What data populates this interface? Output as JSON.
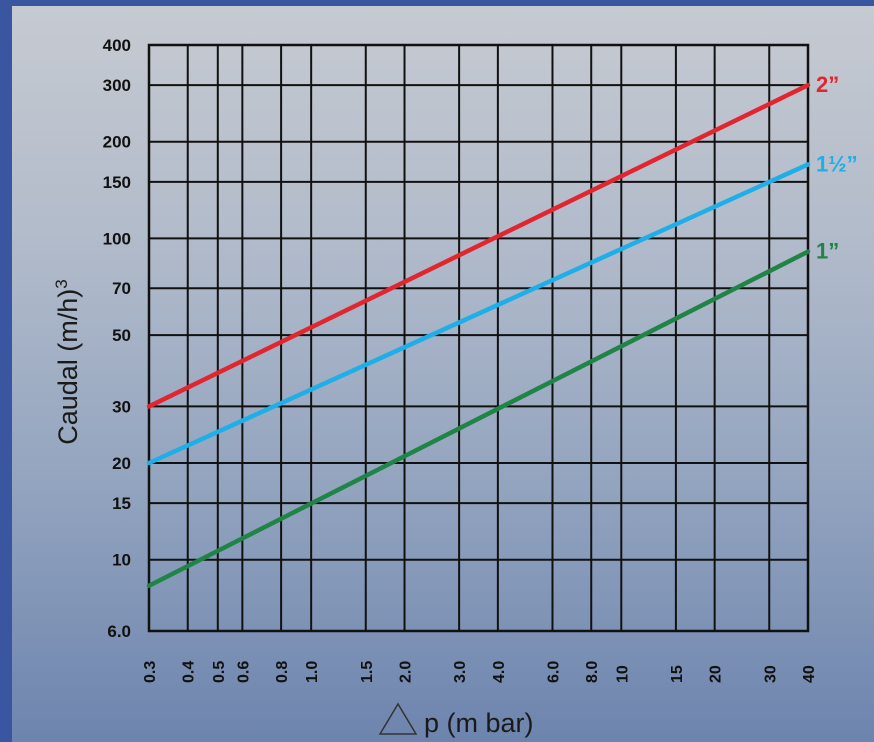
{
  "chart_data": {
    "type": "line",
    "xlabel": "p (m bar)",
    "ylabel": "Caudal (m/h)",
    "ylabel_superscript": "3",
    "x_scale": "log",
    "y_scale": "log",
    "xlim": [
      0.3,
      40
    ],
    "ylim": [
      6.0,
      400
    ],
    "grid": true,
    "x_ticks": [
      {
        "value": 0.3,
        "label": "0.3"
      },
      {
        "value": 0.4,
        "label": "0.4"
      },
      {
        "value": 0.5,
        "label": "0.5"
      },
      {
        "value": 0.6,
        "label": "0.6"
      },
      {
        "value": 0.8,
        "label": "0.8"
      },
      {
        "value": 1.0,
        "label": "1.0"
      },
      {
        "value": 1.5,
        "label": "1.5"
      },
      {
        "value": 2.0,
        "label": "2.0"
      },
      {
        "value": 3.0,
        "label": "3.0"
      },
      {
        "value": 4.0,
        "label": "4.0"
      },
      {
        "value": 6.0,
        "label": "6.0"
      },
      {
        "value": 8.0,
        "label": "8.0"
      },
      {
        "value": 10,
        "label": "10"
      },
      {
        "value": 15,
        "label": "15"
      },
      {
        "value": 20,
        "label": "20"
      },
      {
        "value": 30,
        "label": "30"
      },
      {
        "value": 40,
        "label": "40"
      }
    ],
    "y_ticks": [
      {
        "value": 6.0,
        "label": "6.0"
      },
      {
        "value": 10,
        "label": "10"
      },
      {
        "value": 15,
        "label": "15"
      },
      {
        "value": 20,
        "label": "20"
      },
      {
        "value": 30,
        "label": "30"
      },
      {
        "value": 50,
        "label": "50"
      },
      {
        "value": 70,
        "label": "70"
      },
      {
        "value": 100,
        "label": "100"
      },
      {
        "value": 150,
        "label": "150"
      },
      {
        "value": 200,
        "label": "200"
      },
      {
        "value": 300,
        "label": "300"
      },
      {
        "value": 400,
        "label": "400"
      }
    ],
    "series": [
      {
        "name": "2”",
        "color": "#e2262f",
        "x": [
          0.3,
          40
        ],
        "y": [
          30,
          300
        ]
      },
      {
        "name": "1½”",
        "color": "#1eaee8",
        "x": [
          0.3,
          40
        ],
        "y": [
          20,
          170
        ]
      },
      {
        "name": "1”",
        "color": "#1f8446",
        "x": [
          0.3,
          40
        ],
        "y": [
          8.3,
          91
        ]
      }
    ]
  }
}
